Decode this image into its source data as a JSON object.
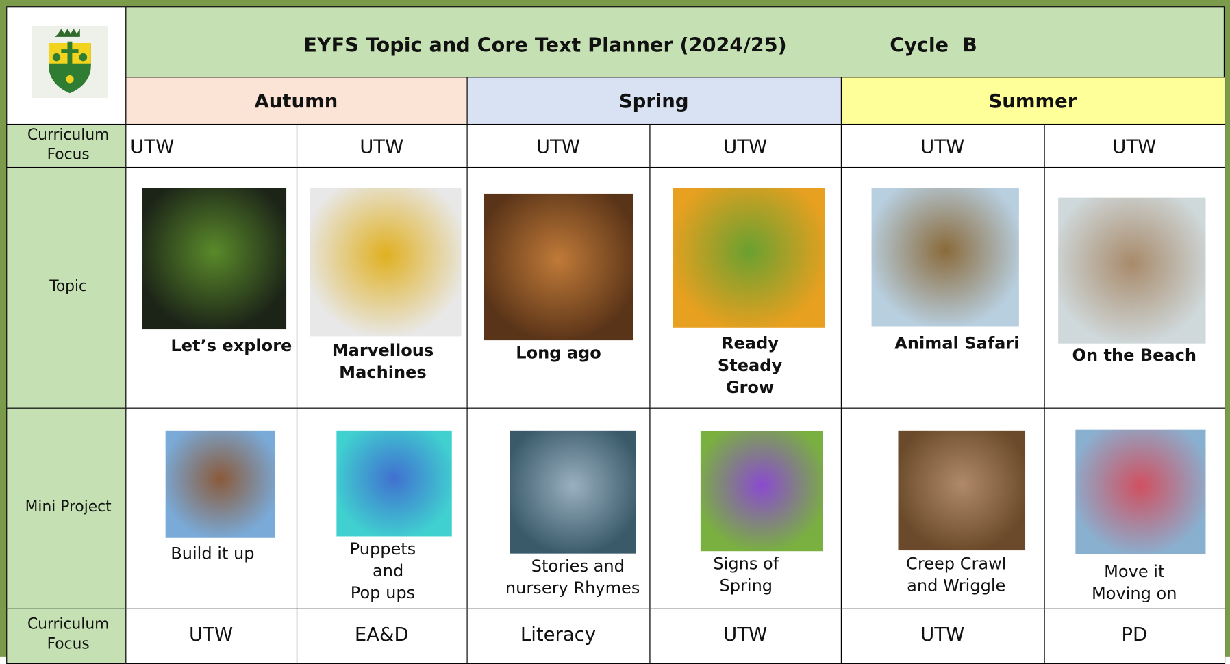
{
  "header": {
    "title": "EYFS Topic and Core Text Planner (2024/25)",
    "cycle": "Cycle  B"
  },
  "terms": [
    "Autumn",
    "Spring",
    "Summer"
  ],
  "rows": [
    {
      "label": "Curriculum Focus",
      "cells": [
        "UTW",
        "UTW",
        "UTW",
        "UTW",
        "UTW",
        "UTW"
      ]
    },
    {
      "label": "Topic",
      "cells": [
        "Let’s explore",
        "Marvellous\nMachines",
        "Long ago",
        "Ready\nSteady\nGrow",
        "Animal Safari",
        "On the Beach"
      ]
    },
    {
      "label": "Mini Project",
      "cells": [
        "Build it up",
        "Puppets\n  and\nPop ups",
        "  Stories and\nnursery Rhymes",
        "Signs of\nSpring",
        "Creep Crawl\nand Wriggle",
        "Move it\nMoving on"
      ]
    },
    {
      "label": "Curriculum Focus",
      "cells": [
        "UTW",
        "EA&D",
        "Literacy",
        "UTW",
        "UTW",
        "PD"
      ]
    }
  ]
}
